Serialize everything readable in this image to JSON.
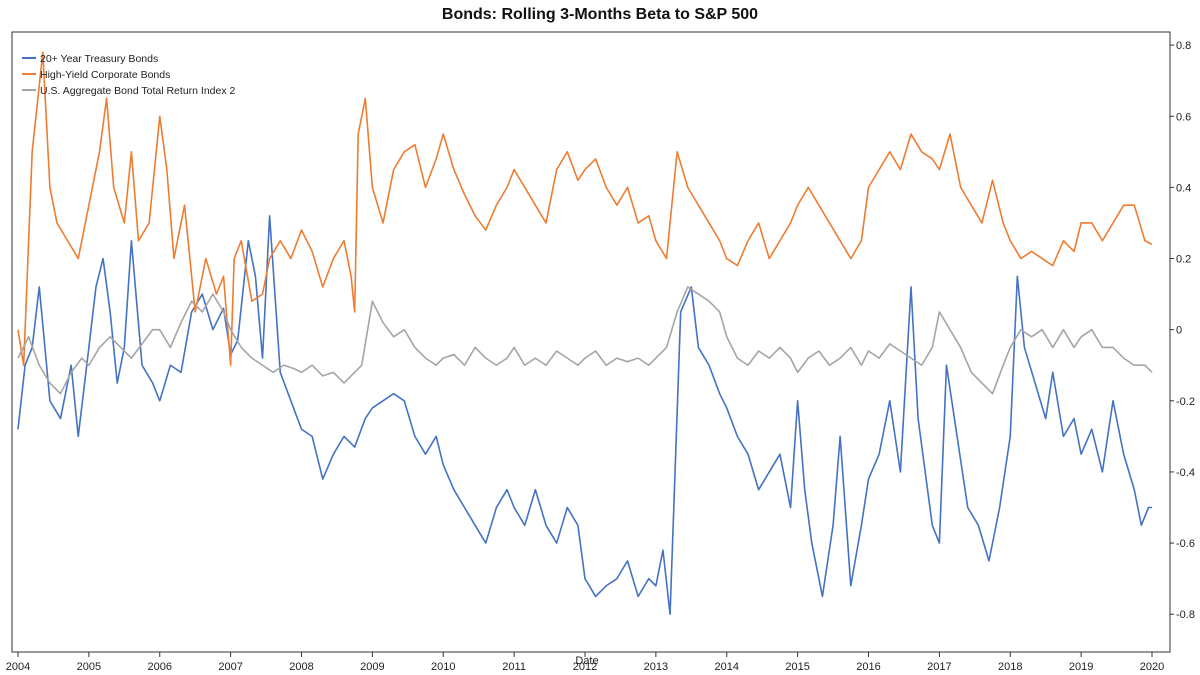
{
  "chart_data": {
    "type": "line",
    "title": "Bonds: Rolling 3-Months Beta to S&P 500",
    "xlabel": "Date",
    "ylabel": "",
    "xlim": [
      2004,
      2020
    ],
    "ylim": [
      -0.85,
      0.82
    ],
    "x_ticks": [
      "2004",
      "2005",
      "2006",
      "2007",
      "2008",
      "2009",
      "2010",
      "2011",
      "2012",
      "2013",
      "2014",
      "2015",
      "2016",
      "2017",
      "2018",
      "2019",
      "2020"
    ],
    "y_ticks": [
      0.8,
      0.6,
      0.4,
      0.2,
      0,
      -0.2,
      -0.4,
      -0.6,
      -0.8
    ],
    "y_tick_labels": [
      "0.8",
      "0.6",
      "0.4",
      "0.2",
      "0",
      "-0.2",
      "-0.4",
      "-0.6",
      "-0.8"
    ],
    "y_axis_side": "right",
    "grid": false,
    "legend_position": "top-left",
    "series": [
      {
        "name": "20+ Year Treasury Bonds",
        "color": "#4472c4",
        "x": [
          2004.0,
          2004.1,
          2004.2,
          2004.3,
          2004.45,
          2004.6,
          2004.75,
          2004.85,
          2005.0,
          2005.1,
          2005.2,
          2005.3,
          2005.4,
          2005.5,
          2005.6,
          2005.75,
          2005.9,
          2006.0,
          2006.15,
          2006.3,
          2006.45,
          2006.6,
          2006.75,
          2006.9,
          2007.0,
          2007.1,
          2007.25,
          2007.35,
          2007.45,
          2007.55,
          2007.7,
          2007.85,
          2008.0,
          2008.15,
          2008.3,
          2008.45,
          2008.6,
          2008.75,
          2008.9,
          2009.0,
          2009.15,
          2009.3,
          2009.45,
          2009.6,
          2009.75,
          2009.9,
          2010.0,
          2010.15,
          2010.3,
          2010.45,
          2010.6,
          2010.75,
          2010.9,
          2011.0,
          2011.15,
          2011.3,
          2011.45,
          2011.6,
          2011.75,
          2011.9,
          2012.0,
          2012.15,
          2012.3,
          2012.45,
          2012.6,
          2012.75,
          2012.9,
          2013.0,
          2013.1,
          2013.2,
          2013.35,
          2013.5,
          2013.6,
          2013.75,
          2013.9,
          2014.0,
          2014.15,
          2014.3,
          2014.45,
          2014.6,
          2014.75,
          2014.9,
          2015.0,
          2015.1,
          2015.2,
          2015.35,
          2015.5,
          2015.6,
          2015.75,
          2015.9,
          2016.0,
          2016.15,
          2016.3,
          2016.45,
          2016.6,
          2016.7,
          2016.8,
          2016.9,
          2017.0,
          2017.1,
          2017.25,
          2017.4,
          2017.55,
          2017.7,
          2017.85,
          2018.0,
          2018.1,
          2018.2,
          2018.35,
          2018.5,
          2018.6,
          2018.75,
          2018.9,
          2019.0,
          2019.15,
          2019.3,
          2019.45,
          2019.6,
          2019.75,
          2019.85,
          2019.95,
          2020.0
        ],
        "values": [
          -0.28,
          -0.1,
          -0.05,
          0.12,
          -0.2,
          -0.25,
          -0.1,
          -0.3,
          -0.05,
          0.12,
          0.2,
          0.05,
          -0.15,
          -0.05,
          0.25,
          -0.1,
          -0.15,
          -0.2,
          -0.1,
          -0.12,
          0.05,
          0.1,
          0.0,
          0.06,
          -0.07,
          -0.03,
          0.25,
          0.15,
          -0.08,
          0.32,
          -0.12,
          -0.2,
          -0.28,
          -0.3,
          -0.42,
          -0.35,
          -0.3,
          -0.33,
          -0.25,
          -0.22,
          -0.2,
          -0.18,
          -0.2,
          -0.3,
          -0.35,
          -0.3,
          -0.38,
          -0.45,
          -0.5,
          -0.55,
          -0.6,
          -0.5,
          -0.45,
          -0.5,
          -0.55,
          -0.45,
          -0.55,
          -0.6,
          -0.5,
          -0.55,
          -0.7,
          -0.75,
          -0.72,
          -0.7,
          -0.65,
          -0.75,
          -0.7,
          -0.72,
          -0.62,
          -0.8,
          0.05,
          0.12,
          -0.05,
          -0.1,
          -0.18,
          -0.22,
          -0.3,
          -0.35,
          -0.45,
          -0.4,
          -0.35,
          -0.5,
          -0.2,
          -0.45,
          -0.6,
          -0.75,
          -0.55,
          -0.3,
          -0.72,
          -0.55,
          -0.42,
          -0.35,
          -0.2,
          -0.4,
          0.12,
          -0.25,
          -0.4,
          -0.55,
          -0.6,
          -0.1,
          -0.3,
          -0.5,
          -0.55,
          -0.65,
          -0.5,
          -0.3,
          0.15,
          -0.05,
          -0.15,
          -0.25,
          -0.12,
          -0.3,
          -0.25,
          -0.35,
          -0.28,
          -0.4,
          -0.2,
          -0.35,
          -0.45,
          -0.55,
          -0.5,
          -0.5
        ]
      },
      {
        "name": "High-Yield Corporate Bonds",
        "color": "#ed7d31",
        "x": [
          2004.0,
          2004.08,
          2004.2,
          2004.35,
          2004.45,
          2004.55,
          2004.7,
          2004.85,
          2005.0,
          2005.15,
          2005.25,
          2005.35,
          2005.5,
          2005.6,
          2005.7,
          2005.85,
          2006.0,
          2006.1,
          2006.2,
          2006.35,
          2006.5,
          2006.65,
          2006.8,
          2006.9,
          2007.0,
          2007.05,
          2007.15,
          2007.3,
          2007.45,
          2007.55,
          2007.7,
          2007.85,
          2008.0,
          2008.15,
          2008.3,
          2008.45,
          2008.6,
          2008.7,
          2008.75,
          2008.8,
          2008.9,
          2009.0,
          2009.15,
          2009.3,
          2009.45,
          2009.6,
          2009.75,
          2009.9,
          2010.0,
          2010.15,
          2010.3,
          2010.45,
          2010.6,
          2010.75,
          2010.9,
          2011.0,
          2011.15,
          2011.3,
          2011.45,
          2011.6,
          2011.75,
          2011.9,
          2012.0,
          2012.15,
          2012.3,
          2012.45,
          2012.6,
          2012.75,
          2012.9,
          2013.0,
          2013.15,
          2013.3,
          2013.45,
          2013.6,
          2013.75,
          2013.9,
          2014.0,
          2014.15,
          2014.3,
          2014.45,
          2014.6,
          2014.75,
          2014.9,
          2015.0,
          2015.15,
          2015.3,
          2015.45,
          2015.6,
          2015.75,
          2015.9,
          2016.0,
          2016.15,
          2016.3,
          2016.45,
          2016.6,
          2016.75,
          2016.9,
          2017.0,
          2017.15,
          2017.3,
          2017.45,
          2017.6,
          2017.75,
          2017.9,
          2018.0,
          2018.15,
          2018.3,
          2018.45,
          2018.6,
          2018.75,
          2018.9,
          2019.0,
          2019.15,
          2019.3,
          2019.45,
          2019.6,
          2019.75,
          2019.9,
          2020.0
        ],
        "values": [
          0.0,
          -0.1,
          0.5,
          0.78,
          0.4,
          0.3,
          0.25,
          0.2,
          0.35,
          0.5,
          0.65,
          0.4,
          0.3,
          0.5,
          0.25,
          0.3,
          0.6,
          0.45,
          0.2,
          0.35,
          0.05,
          0.2,
          0.1,
          0.15,
          -0.1,
          0.2,
          0.25,
          0.08,
          0.1,
          0.2,
          0.25,
          0.2,
          0.28,
          0.22,
          0.12,
          0.2,
          0.25,
          0.15,
          0.05,
          0.55,
          0.65,
          0.4,
          0.3,
          0.45,
          0.5,
          0.52,
          0.4,
          0.48,
          0.55,
          0.45,
          0.38,
          0.32,
          0.28,
          0.35,
          0.4,
          0.45,
          0.4,
          0.35,
          0.3,
          0.45,
          0.5,
          0.42,
          0.45,
          0.48,
          0.4,
          0.35,
          0.4,
          0.3,
          0.32,
          0.25,
          0.2,
          0.5,
          0.4,
          0.35,
          0.3,
          0.25,
          0.2,
          0.18,
          0.25,
          0.3,
          0.2,
          0.25,
          0.3,
          0.35,
          0.4,
          0.35,
          0.3,
          0.25,
          0.2,
          0.25,
          0.4,
          0.45,
          0.5,
          0.45,
          0.55,
          0.5,
          0.48,
          0.45,
          0.55,
          0.4,
          0.35,
          0.3,
          0.42,
          0.3,
          0.25,
          0.2,
          0.22,
          0.2,
          0.18,
          0.25,
          0.22,
          0.3,
          0.3,
          0.25,
          0.3,
          0.35,
          0.35,
          0.25,
          0.24
        ]
      },
      {
        "name": "U.S. Aggregate Bond Total Return Index 2",
        "color": "#a5a5a5",
        "x": [
          2004.0,
          2004.15,
          2004.3,
          2004.45,
          2004.6,
          2004.75,
          2004.9,
          2005.0,
          2005.15,
          2005.3,
          2005.45,
          2005.6,
          2005.75,
          2005.9,
          2006.0,
          2006.15,
          2006.3,
          2006.45,
          2006.6,
          2006.75,
          2006.9,
          2007.0,
          2007.15,
          2007.3,
          2007.45,
          2007.6,
          2007.75,
          2007.9,
          2008.0,
          2008.15,
          2008.3,
          2008.45,
          2008.6,
          2008.75,
          2008.85,
          2009.0,
          2009.15,
          2009.3,
          2009.45,
          2009.6,
          2009.75,
          2009.9,
          2010.0,
          2010.15,
          2010.3,
          2010.45,
          2010.6,
          2010.75,
          2010.9,
          2011.0,
          2011.15,
          2011.3,
          2011.45,
          2011.6,
          2011.75,
          2011.9,
          2012.0,
          2012.15,
          2012.3,
          2012.45,
          2012.6,
          2012.75,
          2012.9,
          2013.0,
          2013.15,
          2013.3,
          2013.45,
          2013.6,
          2013.75,
          2013.9,
          2014.0,
          2014.15,
          2014.3,
          2014.45,
          2014.6,
          2014.75,
          2014.9,
          2015.0,
          2015.15,
          2015.3,
          2015.45,
          2015.6,
          2015.75,
          2015.9,
          2016.0,
          2016.15,
          2016.3,
          2016.45,
          2016.6,
          2016.75,
          2016.9,
          2017.0,
          2017.15,
          2017.3,
          2017.45,
          2017.6,
          2017.75,
          2017.9,
          2018.0,
          2018.15,
          2018.3,
          2018.45,
          2018.6,
          2018.75,
          2018.9,
          2019.0,
          2019.15,
          2019.3,
          2019.45,
          2019.6,
          2019.75,
          2019.9,
          2020.0
        ],
        "values": [
          -0.08,
          -0.02,
          -0.1,
          -0.15,
          -0.18,
          -0.12,
          -0.08,
          -0.1,
          -0.05,
          -0.02,
          -0.05,
          -0.08,
          -0.04,
          0.0,
          0.0,
          -0.05,
          0.02,
          0.08,
          0.05,
          0.1,
          0.05,
          0.0,
          -0.05,
          -0.08,
          -0.1,
          -0.12,
          -0.1,
          -0.11,
          -0.12,
          -0.1,
          -0.13,
          -0.12,
          -0.15,
          -0.12,
          -0.1,
          0.08,
          0.02,
          -0.02,
          0.0,
          -0.05,
          -0.08,
          -0.1,
          -0.08,
          -0.07,
          -0.1,
          -0.05,
          -0.08,
          -0.1,
          -0.08,
          -0.05,
          -0.1,
          -0.08,
          -0.1,
          -0.06,
          -0.08,
          -0.1,
          -0.08,
          -0.06,
          -0.1,
          -0.08,
          -0.09,
          -0.08,
          -0.1,
          -0.08,
          -0.05,
          0.05,
          0.12,
          0.1,
          0.08,
          0.05,
          -0.02,
          -0.08,
          -0.1,
          -0.06,
          -0.08,
          -0.05,
          -0.08,
          -0.12,
          -0.08,
          -0.06,
          -0.1,
          -0.08,
          -0.05,
          -0.1,
          -0.06,
          -0.08,
          -0.04,
          -0.06,
          -0.08,
          -0.1,
          -0.05,
          0.05,
          0.0,
          -0.05,
          -0.12,
          -0.15,
          -0.18,
          -0.1,
          -0.05,
          0.0,
          -0.02,
          0.0,
          -0.05,
          0.0,
          -0.05,
          -0.02,
          0.0,
          -0.05,
          -0.05,
          -0.08,
          -0.1,
          -0.1,
          -0.12
        ]
      }
    ]
  }
}
